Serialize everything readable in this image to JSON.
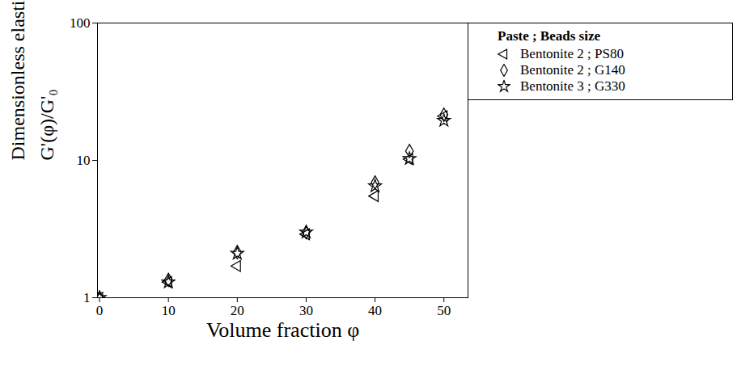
{
  "chart_data": {
    "type": "scatter",
    "x_label": "Volume fraction φ",
    "y_label": [
      "Dimensionless elastic modulus",
      "G'(φ)/G'₀"
    ],
    "legend_title": "Paste ; Beads size",
    "x": [
      0,
      10,
      20,
      30,
      40,
      45,
      50
    ],
    "series": [
      {
        "name": "Bentonite 2 ; PS80",
        "color": "#000000",
        "marker": "triangle-left",
        "values": [
          1,
          1.3,
          1.7,
          2.9,
          5.5,
          10.2,
          21
        ]
      },
      {
        "name": "Bentonite 2 ; G140",
        "color": "#000000",
        "marker": "diamond",
        "values": [
          1,
          1.35,
          2.15,
          3.0,
          6.9,
          11.7,
          21.5
        ]
      },
      {
        "name": "Bentonite 3 ; G330",
        "color": "#000000",
        "marker": "star",
        "values": [
          1,
          1.3,
          2.1,
          3.0,
          6.5,
          10.3,
          19.5
        ]
      }
    ],
    "xlim": [
      -0.3,
      53.5
    ],
    "xticks": [
      0,
      10,
      20,
      30,
      40,
      50
    ],
    "ylim": [
      1,
      100
    ],
    "yticks": [
      1,
      10,
      100
    ],
    "log": "y",
    "grid": false,
    "legend": "right"
  }
}
